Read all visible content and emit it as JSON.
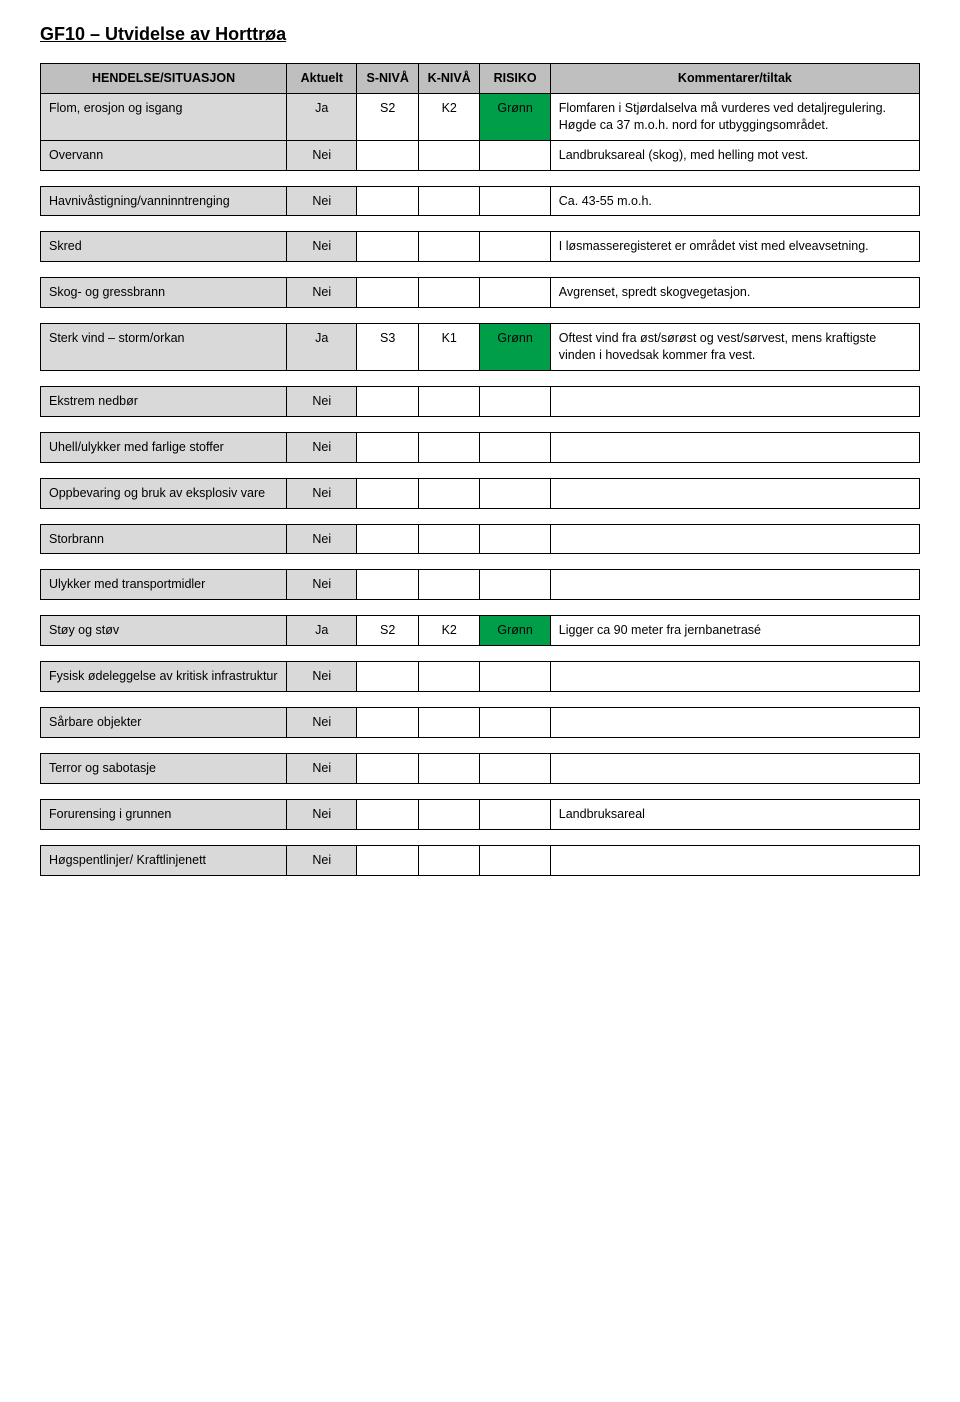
{
  "title": "GF10 – Utvidelse av Horttrøa",
  "columns": {
    "hendelse": "HENDELSE/SITUASJON",
    "aktuelt": "Aktuelt",
    "sniva": "S-NIVÅ",
    "kniva": "K-NIVÅ",
    "risiko": "RISIKO",
    "kommentar": "Kommentarer/tiltak"
  },
  "colors": {
    "header_bg": "#bfbfbf",
    "label_bg": "#d9d9d9",
    "risk_green": "#009e49"
  },
  "rows": [
    {
      "hendelse": "Flom, erosjon og isgang",
      "aktuelt": "Ja",
      "sniva": "S2",
      "kniva": "K2",
      "risiko": "Grønn",
      "risiko_color": "#009e49",
      "kommentar": "Flomfaren i Stjørdalselva må vurderes ved detaljregulering. Høgde ca 37 m.o.h. nord for utbyggingsområdet."
    },
    {
      "hendelse": "Overvann",
      "aktuelt": "Nei",
      "sniva": "",
      "kniva": "",
      "risiko": "",
      "risiko_color": "",
      "kommentar": "Landbruksareal (skog), med helling mot vest."
    },
    {
      "spacer": true
    },
    {
      "hendelse": "Havnivåstigning/vanninntrenging",
      "aktuelt": "Nei",
      "sniva": "",
      "kniva": "",
      "risiko": "",
      "risiko_color": "",
      "kommentar": "Ca. 43-55 m.o.h."
    },
    {
      "spacer": true
    },
    {
      "hendelse": "Skred",
      "aktuelt": "Nei",
      "sniva": "",
      "kniva": "",
      "risiko": "",
      "risiko_color": "",
      "kommentar": "I løsmasseregisteret er området vist med elveavsetning."
    },
    {
      "spacer": true
    },
    {
      "hendelse": "Skog- og gressbrann",
      "aktuelt": "Nei",
      "sniva": "",
      "kniva": "",
      "risiko": "",
      "risiko_color": "",
      "kommentar": "Avgrenset, spredt skogvegetasjon."
    },
    {
      "spacer": true
    },
    {
      "hendelse": "Sterk vind – storm/orkan",
      "aktuelt": "Ja",
      "sniva": "S3",
      "kniva": "K1",
      "risiko": "Grønn",
      "risiko_color": "#009e49",
      "kommentar": "Oftest vind fra øst/sørøst og vest/sørvest, mens kraftigste vinden i hovedsak kommer fra vest."
    },
    {
      "spacer": true
    },
    {
      "hendelse": "Ekstrem nedbør",
      "aktuelt": "Nei",
      "sniva": "",
      "kniva": "",
      "risiko": "",
      "risiko_color": "",
      "kommentar": ""
    },
    {
      "spacer": true
    },
    {
      "hendelse": "Uhell/ulykker med farlige stoffer",
      "aktuelt": "Nei",
      "sniva": "",
      "kniva": "",
      "risiko": "",
      "risiko_color": "",
      "kommentar": ""
    },
    {
      "spacer": true
    },
    {
      "hendelse": "Oppbevaring og bruk av eksplosiv vare",
      "aktuelt": "Nei",
      "sniva": "",
      "kniva": "",
      "risiko": "",
      "risiko_color": "",
      "kommentar": ""
    },
    {
      "spacer": true
    },
    {
      "hendelse": "Storbrann",
      "aktuelt": "Nei",
      "sniva": "",
      "kniva": "",
      "risiko": "",
      "risiko_color": "",
      "kommentar": ""
    },
    {
      "spacer": true
    },
    {
      "hendelse": "Ulykker med transportmidler",
      "aktuelt": "Nei",
      "sniva": "",
      "kniva": "",
      "risiko": "",
      "risiko_color": "",
      "kommentar": ""
    },
    {
      "spacer": true
    },
    {
      "hendelse": "Støy og støv",
      "aktuelt": "Ja",
      "sniva": "S2",
      "kniva": "K2",
      "risiko": "Grønn",
      "risiko_color": "#009e49",
      "kommentar": "Ligger ca 90 meter fra jernbanetrasé"
    },
    {
      "spacer": true
    },
    {
      "hendelse": "Fysisk ødeleggelse av kritisk infrastruktur",
      "aktuelt": "Nei",
      "sniva": "",
      "kniva": "",
      "risiko": "",
      "risiko_color": "",
      "kommentar": ""
    },
    {
      "spacer": true
    },
    {
      "hendelse": "Sårbare objekter",
      "aktuelt": "Nei",
      "sniva": "",
      "kniva": "",
      "risiko": "",
      "risiko_color": "",
      "kommentar": ""
    },
    {
      "spacer": true
    },
    {
      "hendelse": "Terror og sabotasje",
      "aktuelt": "Nei",
      "sniva": "",
      "kniva": "",
      "risiko": "",
      "risiko_color": "",
      "kommentar": ""
    },
    {
      "spacer": true
    },
    {
      "hendelse": "Forurensing i grunnen",
      "aktuelt": "Nei",
      "sniva": "",
      "kniva": "",
      "risiko": "",
      "risiko_color": "",
      "kommentar": "Landbruksareal"
    },
    {
      "spacer": true
    },
    {
      "hendelse": "Høgspentlinjer/ Kraftlinjenett",
      "aktuelt": "Nei",
      "sniva": "",
      "kniva": "",
      "risiko": "",
      "risiko_color": "",
      "kommentar": ""
    }
  ]
}
